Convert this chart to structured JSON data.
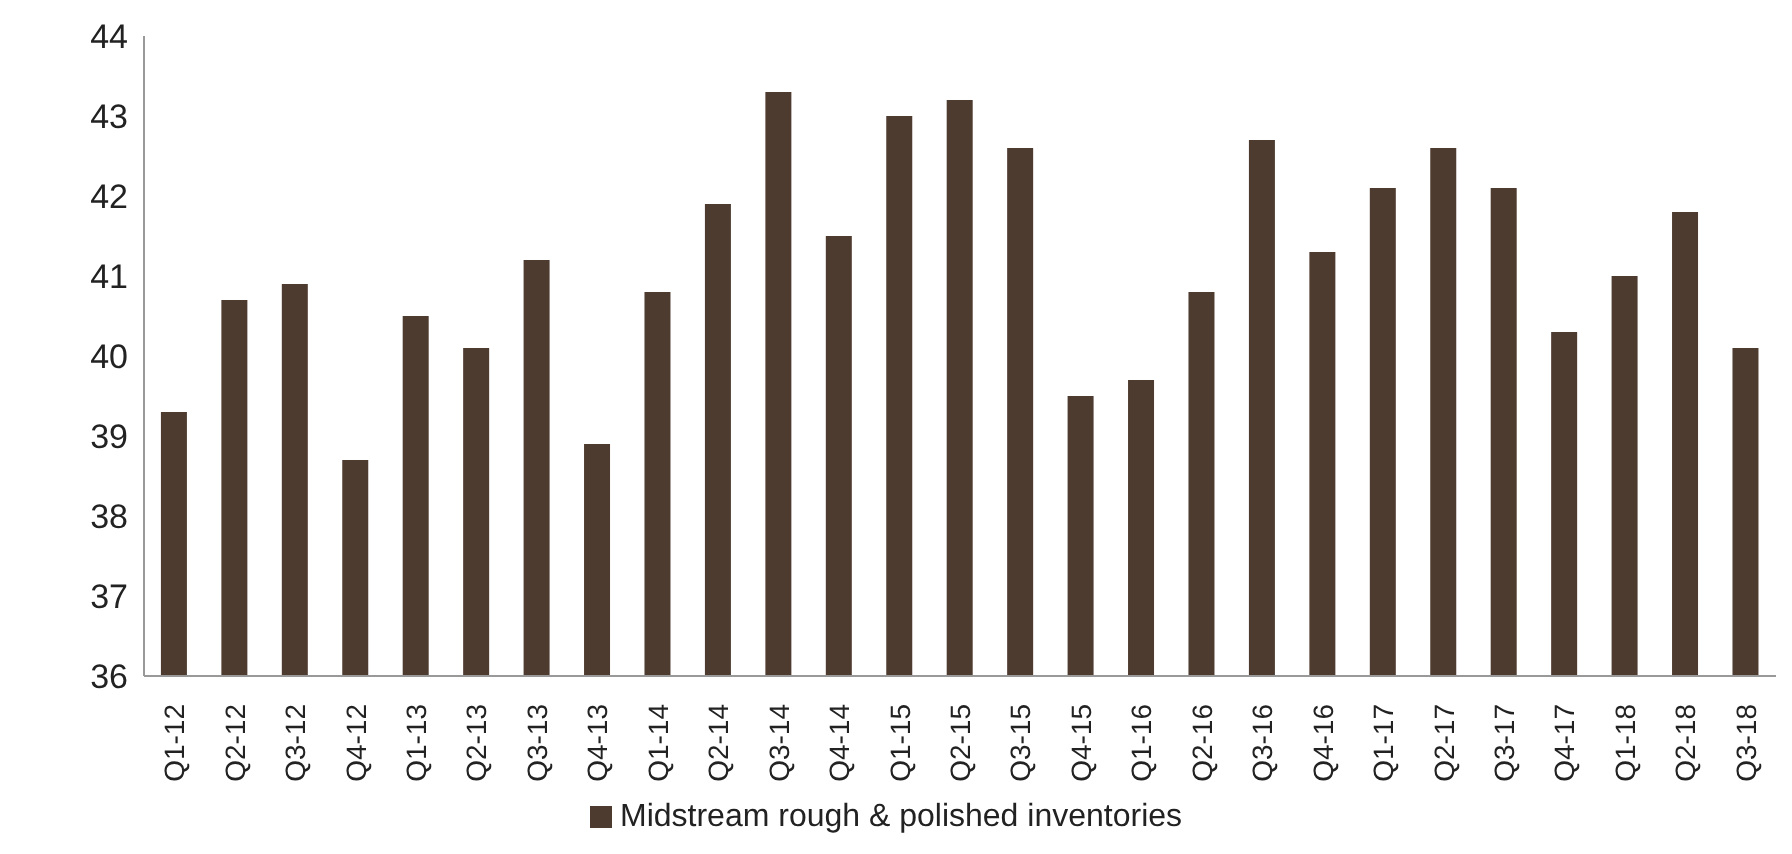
{
  "chart_data": {
    "type": "bar",
    "categories": [
      "Q1-12",
      "Q2-12",
      "Q3-12",
      "Q4-12",
      "Q1-13",
      "Q2-13",
      "Q3-13",
      "Q4-13",
      "Q1-14",
      "Q2-14",
      "Q3-14",
      "Q4-14",
      "Q1-15",
      "Q2-15",
      "Q3-15",
      "Q4-15",
      "Q1-16",
      "Q2-16",
      "Q3-16",
      "Q4-16",
      "Q1-17",
      "Q2-17",
      "Q3-17",
      "Q4-17",
      "Q1-18",
      "Q2-18",
      "Q3-18"
    ],
    "series": [
      {
        "name": "Midstream rough & polished inventories",
        "color": "#4e3b30",
        "values": [
          39.3,
          40.7,
          40.9,
          38.7,
          40.5,
          40.1,
          41.2,
          38.9,
          40.8,
          41.9,
          43.3,
          41.5,
          43.0,
          43.2,
          42.6,
          39.5,
          39.7,
          40.8,
          42.7,
          41.3,
          42.1,
          42.6,
          42.1,
          40.3,
          41.0,
          41.8,
          40.1
        ]
      }
    ],
    "ylim": [
      36,
      44
    ],
    "yticks": [
      36,
      37,
      38,
      39,
      40,
      41,
      42,
      43,
      44
    ],
    "grid": false,
    "legend": "bottom"
  }
}
